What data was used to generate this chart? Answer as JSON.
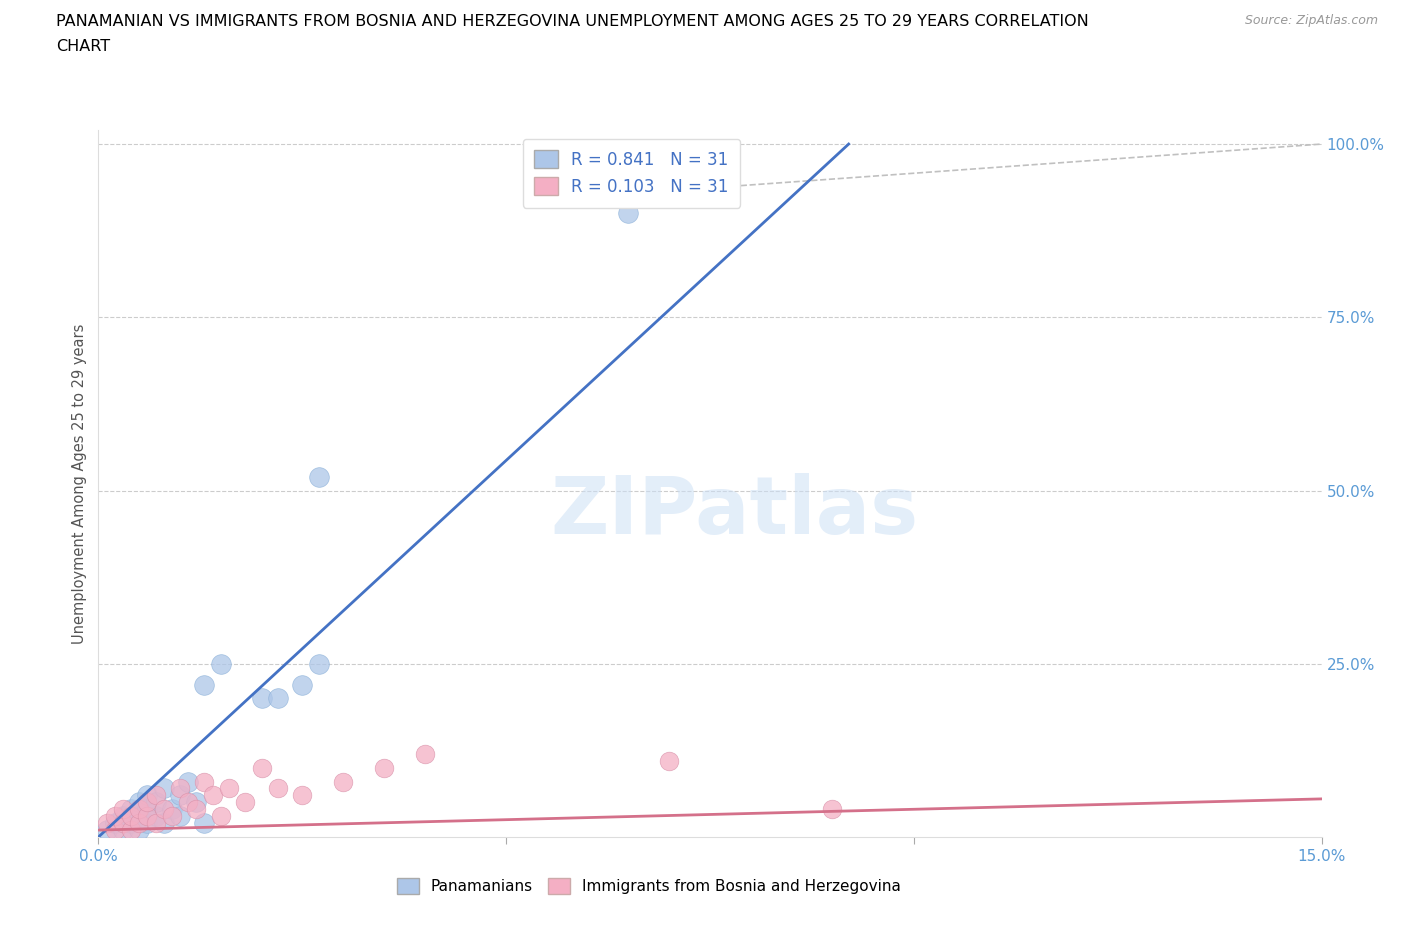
{
  "title_line1": "PANAMANIAN VS IMMIGRANTS FROM BOSNIA AND HERZEGOVINA UNEMPLOYMENT AMONG AGES 25 TO 29 YEARS CORRELATION",
  "title_line2": "CHART",
  "source": "Source: ZipAtlas.com",
  "ylabel": "Unemployment Among Ages 25 to 29 years",
  "xmin": 0.0,
  "xmax": 0.15,
  "ymin": 0.0,
  "ymax": 1.0,
  "ytick_positions": [
    0.0,
    0.25,
    0.5,
    0.75,
    1.0
  ],
  "yticklabels_right": [
    "",
    "25.0%",
    "50.0%",
    "75.0%",
    "100.0%"
  ],
  "blue_R": "0.841",
  "blue_N": "31",
  "pink_R": "0.103",
  "pink_N": "31",
  "blue_color": "#adc6e8",
  "blue_line_color": "#4472c4",
  "pink_color": "#f4afc4",
  "pink_line_color": "#d4708a",
  "dashed_line_color": "#c0c0c0",
  "watermark": "ZIPatlas",
  "blue_line_x": [
    0.0,
    0.092
  ],
  "blue_line_y": [
    0.0,
    1.0
  ],
  "pink_line_x": [
    0.0,
    0.15
  ],
  "pink_line_y": [
    0.01,
    0.055
  ],
  "dash_line_x": [
    0.055,
    0.15
  ],
  "dash_line_y": [
    0.92,
    1.0
  ],
  "scatter_blue_x": [
    0.001,
    0.002,
    0.003,
    0.003,
    0.004,
    0.004,
    0.005,
    0.005,
    0.005,
    0.006,
    0.006,
    0.006,
    0.007,
    0.007,
    0.008,
    0.008,
    0.009,
    0.01,
    0.01,
    0.011,
    0.012,
    0.013,
    0.013,
    0.015,
    0.02,
    0.022,
    0.025,
    0.027,
    0.027,
    0.065,
    0.072
  ],
  "scatter_blue_y": [
    0.01,
    0.02,
    0.01,
    0.03,
    0.02,
    0.04,
    0.01,
    0.03,
    0.05,
    0.02,
    0.04,
    0.06,
    0.03,
    0.05,
    0.02,
    0.07,
    0.04,
    0.03,
    0.06,
    0.08,
    0.05,
    0.02,
    0.22,
    0.25,
    0.2,
    0.2,
    0.22,
    0.52,
    0.25,
    0.9,
    0.93
  ],
  "scatter_pink_x": [
    0.001,
    0.002,
    0.002,
    0.003,
    0.003,
    0.004,
    0.004,
    0.005,
    0.005,
    0.006,
    0.006,
    0.007,
    0.007,
    0.008,
    0.009,
    0.01,
    0.011,
    0.012,
    0.013,
    0.014,
    0.015,
    0.016,
    0.018,
    0.02,
    0.022,
    0.025,
    0.03,
    0.035,
    0.04,
    0.07,
    0.09
  ],
  "scatter_pink_y": [
    0.02,
    0.01,
    0.03,
    0.02,
    0.04,
    0.01,
    0.03,
    0.02,
    0.04,
    0.03,
    0.05,
    0.02,
    0.06,
    0.04,
    0.03,
    0.07,
    0.05,
    0.04,
    0.08,
    0.06,
    0.03,
    0.07,
    0.05,
    0.1,
    0.07,
    0.06,
    0.08,
    0.1,
    0.12,
    0.11,
    0.04
  ]
}
